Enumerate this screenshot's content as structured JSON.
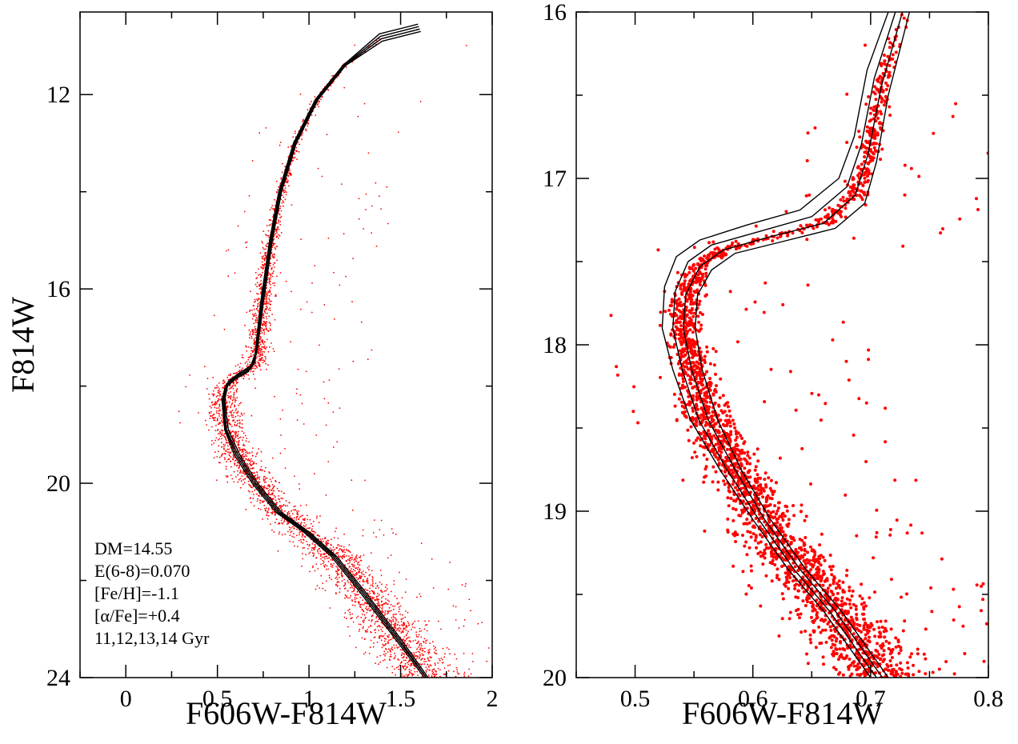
{
  "chart_data": [
    {
      "type": "scatter",
      "panel": "left",
      "xlabel": "F606W-F814W",
      "ylabel": "F814W",
      "xlim": [
        -0.25,
        2.0
      ],
      "ylim": [
        24,
        10.3
      ],
      "y_inverted": true,
      "x_ticks": [
        "0",
        "0.5",
        "1",
        "1.5",
        "2"
      ],
      "x_tick_values": [
        0,
        0.5,
        1,
        1.5,
        2
      ],
      "y_ticks": [
        "12",
        "16",
        "20",
        "24"
      ],
      "y_tick_values": [
        12,
        16,
        20,
        24
      ],
      "annotations": [
        "DM=14.55",
        "E(6-8)=0.070",
        "[Fe/H]=-1.1",
        "[α/Fe]=+0.4",
        "11,12,13,14 Gyr"
      ],
      "scatter_color": "#ff0000",
      "line_color": "#000000",
      "series": [
        {
          "name": "11 Gyr",
          "x": [
            1.65,
            1.5,
            1.3,
            1.15,
            1.0,
            0.85,
            0.72,
            0.62,
            0.56,
            0.54,
            0.56,
            0.63,
            0.7,
            0.72,
            0.75,
            0.8,
            0.85,
            0.93,
            1.05,
            1.2,
            1.4,
            1.61
          ],
          "y": [
            24.0,
            23.2,
            22.2,
            21.5,
            21.0,
            20.6,
            20.0,
            19.4,
            18.9,
            18.3,
            17.9,
            17.7,
            17.55,
            17.2,
            16.3,
            15.0,
            14.0,
            13.0,
            12.1,
            11.4,
            10.9,
            10.7
          ]
        },
        {
          "name": "12 Gyr",
          "x": [
            1.64,
            1.49,
            1.29,
            1.14,
            0.99,
            0.84,
            0.71,
            0.61,
            0.55,
            0.535,
            0.55,
            0.62,
            0.69,
            0.715,
            0.745,
            0.795,
            0.845,
            0.925,
            1.045,
            1.195,
            1.395,
            1.605
          ],
          "y": [
            24.0,
            23.2,
            22.2,
            21.5,
            21.0,
            20.6,
            20.0,
            19.4,
            18.9,
            18.3,
            17.95,
            17.75,
            17.6,
            17.25,
            16.3,
            15.0,
            14.0,
            13.0,
            12.1,
            11.4,
            10.85,
            10.65
          ]
        },
        {
          "name": "13 Gyr",
          "x": [
            1.64,
            1.48,
            1.28,
            1.13,
            0.98,
            0.83,
            0.7,
            0.6,
            0.545,
            0.53,
            0.545,
            0.61,
            0.68,
            0.71,
            0.74,
            0.79,
            0.84,
            0.92,
            1.04,
            1.19,
            1.39,
            1.6
          ],
          "y": [
            24.0,
            23.2,
            22.2,
            21.5,
            21.0,
            20.6,
            20.0,
            19.4,
            18.9,
            18.3,
            18.0,
            17.8,
            17.65,
            17.3,
            16.3,
            15.0,
            14.0,
            13.0,
            12.1,
            11.4,
            10.8,
            10.6
          ]
        },
        {
          "name": "14 Gyr",
          "x": [
            1.63,
            1.47,
            1.27,
            1.12,
            0.97,
            0.82,
            0.69,
            0.59,
            0.54,
            0.525,
            0.54,
            0.6,
            0.67,
            0.705,
            0.735,
            0.785,
            0.835,
            0.915,
            1.035,
            1.185,
            1.385,
            1.595
          ],
          "y": [
            24.0,
            23.2,
            22.2,
            21.5,
            21.0,
            20.6,
            20.0,
            19.4,
            18.9,
            18.3,
            18.05,
            17.85,
            17.7,
            17.35,
            16.3,
            15.0,
            14.0,
            13.0,
            12.1,
            11.4,
            10.75,
            10.55
          ]
        }
      ]
    },
    {
      "type": "scatter",
      "panel": "right",
      "xlabel": "F606W-F814W",
      "ylabel": "",
      "xlim": [
        0.45,
        0.8
      ],
      "ylim": [
        20,
        16
      ],
      "y_inverted": true,
      "x_ticks": [
        "0.5",
        "0.6",
        "0.7",
        "0.8"
      ],
      "x_tick_values": [
        0.5,
        0.6,
        0.7,
        0.8
      ],
      "y_ticks": [
        "16",
        "17",
        "18",
        "19",
        "20"
      ],
      "y_tick_values": [
        16,
        17,
        18,
        19,
        20
      ],
      "scatter_color": "#ff0000",
      "line_color": "#000000",
      "series": [
        {
          "name": "11 Gyr",
          "x": [
            0.715,
            0.7,
            0.675,
            0.645,
            0.615,
            0.59,
            0.57,
            0.557,
            0.551,
            0.553,
            0.565,
            0.585,
            0.625,
            0.67,
            0.695,
            0.705,
            0.715,
            0.733
          ],
          "y": [
            20.0,
            19.85,
            19.6,
            19.35,
            19.05,
            18.75,
            18.45,
            18.15,
            17.9,
            17.7,
            17.55,
            17.45,
            17.38,
            17.3,
            17.15,
            16.9,
            16.5,
            16.0
          ]
        },
        {
          "name": "12 Gyr",
          "x": [
            0.71,
            0.695,
            0.67,
            0.64,
            0.61,
            0.585,
            0.562,
            0.548,
            0.541,
            0.543,
            0.555,
            0.575,
            0.615,
            0.66,
            0.687,
            0.698,
            0.709,
            0.727
          ],
          "y": [
            20.0,
            19.85,
            19.6,
            19.35,
            19.05,
            18.75,
            18.45,
            18.15,
            17.9,
            17.7,
            17.53,
            17.43,
            17.35,
            17.27,
            17.1,
            16.85,
            16.45,
            16.0
          ]
        },
        {
          "name": "13 Gyr",
          "x": [
            0.705,
            0.69,
            0.665,
            0.635,
            0.605,
            0.578,
            0.554,
            0.54,
            0.532,
            0.534,
            0.545,
            0.565,
            0.605,
            0.65,
            0.68,
            0.692,
            0.703,
            0.721
          ],
          "y": [
            20.0,
            19.85,
            19.6,
            19.35,
            19.05,
            18.75,
            18.45,
            18.15,
            17.9,
            17.68,
            17.5,
            17.4,
            17.32,
            17.23,
            17.05,
            16.8,
            16.4,
            16.0
          ]
        },
        {
          "name": "14 Gyr",
          "x": [
            0.7,
            0.685,
            0.66,
            0.63,
            0.6,
            0.572,
            0.547,
            0.532,
            0.523,
            0.525,
            0.535,
            0.555,
            0.595,
            0.64,
            0.673,
            0.686,
            0.697,
            0.715
          ],
          "y": [
            20.0,
            19.85,
            19.6,
            19.35,
            19.05,
            18.75,
            18.45,
            18.15,
            17.9,
            17.65,
            17.47,
            17.37,
            17.28,
            17.19,
            17.0,
            16.75,
            16.35,
            16.0
          ]
        }
      ]
    }
  ]
}
